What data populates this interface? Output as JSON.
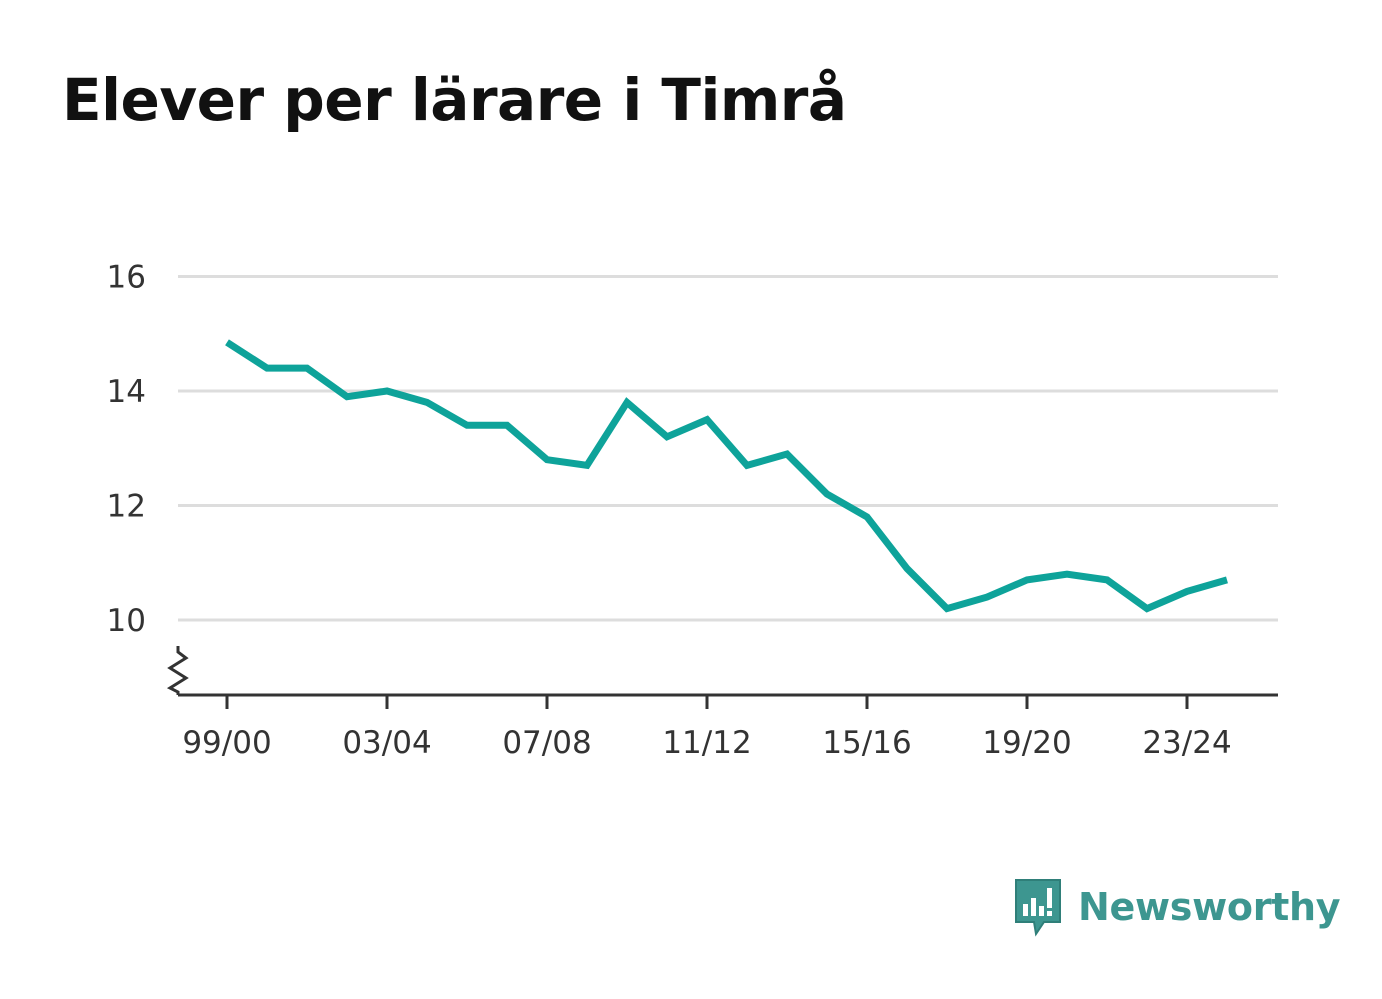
{
  "title": "Elever per lärare i Timrå",
  "brand": {
    "name": "Newsworthy",
    "icon": "newsworthy-logo-icon",
    "color": "#3d9690"
  },
  "colors": {
    "line": "#0ea39a",
    "grid": "#dddddd",
    "axis": "#333333"
  },
  "chart_data": {
    "type": "line",
    "title": "Elever per lärare i Timrå",
    "xlabel": "",
    "ylabel": "",
    "x": [
      "99/00",
      "00/01",
      "01/02",
      "02/03",
      "03/04",
      "04/05",
      "05/06",
      "06/07",
      "07/08",
      "08/09",
      "09/10",
      "10/11",
      "11/12",
      "12/13",
      "13/14",
      "14/15",
      "15/16",
      "16/17",
      "17/18",
      "18/19",
      "19/20",
      "20/21",
      "21/22",
      "22/23",
      "23/24",
      "24/25"
    ],
    "x_tick_labels": [
      "99/00",
      "03/04",
      "07/08",
      "11/12",
      "15/16",
      "19/20",
      "23/24"
    ],
    "series": [
      {
        "values": [
          14.85,
          14.4,
          14.4,
          13.9,
          14.0,
          13.8,
          13.4,
          13.4,
          12.8,
          12.7,
          13.8,
          13.2,
          13.5,
          12.7,
          12.9,
          12.2,
          11.8,
          10.9,
          10.2,
          10.4,
          10.7,
          10.8,
          10.7,
          10.2,
          10.5,
          10.7
        ]
      }
    ],
    "y_ticks": [
      10,
      12,
      14,
      16
    ],
    "ylim": [
      8.7,
      16
    ],
    "y_axis_break": true,
    "grid": true,
    "legend": "none"
  }
}
